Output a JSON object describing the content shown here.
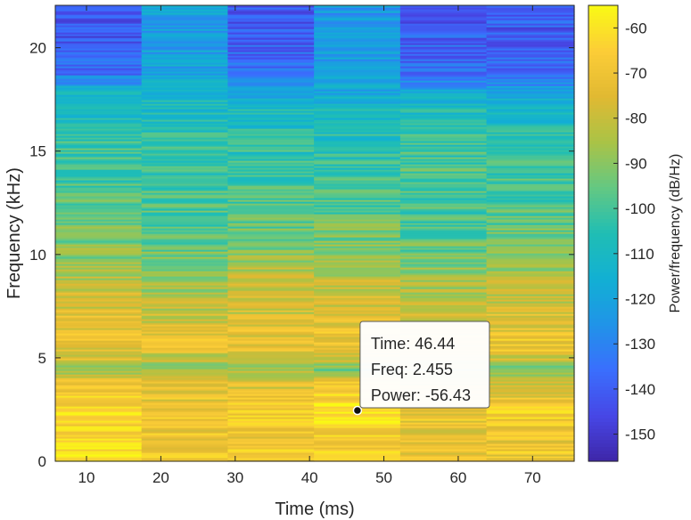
{
  "chart_data": {
    "type": "heatmap",
    "title": "",
    "xlabel": "Time (ms)",
    "ylabel": "Frequency (kHz)",
    "colorbar_label": "Power/frequency (dB/Hz)",
    "colormap": "parula",
    "xlim": [
      5.8,
      75.6
    ],
    "ylim": [
      0,
      22.05
    ],
    "xticks": [
      10,
      20,
      30,
      40,
      50,
      60,
      70
    ],
    "xtick_labels": [
      "10",
      "20",
      "30",
      "40",
      "50",
      "60",
      "70"
    ],
    "yticks": [
      0,
      5,
      10,
      15,
      20
    ],
    "ytick_labels": [
      "0",
      "5",
      "10",
      "15",
      "20"
    ],
    "clim": [
      -156,
      -55
    ],
    "cticks": [
      -60,
      -70,
      -80,
      -90,
      -100,
      -110,
      -120,
      -130,
      -140,
      -150
    ],
    "ctick_labels": [
      "-60",
      "-70",
      "-80",
      "-90",
      "-100",
      "-110",
      "-120",
      "-130",
      "-140",
      "-150"
    ],
    "time_segments": [
      {
        "start": 5.8,
        "end": 17.4,
        "center": 11.6
      },
      {
        "start": 17.4,
        "end": 29.0,
        "center": 23.2
      },
      {
        "start": 29.0,
        "end": 40.6,
        "center": 34.8
      },
      {
        "start": 40.6,
        "end": 52.2,
        "center": 46.44
      },
      {
        "start": 52.2,
        "end": 63.8,
        "center": 58.0
      },
      {
        "start": 63.8,
        "end": 75.6,
        "center": 69.7
      }
    ],
    "spectrum_profile_db": {
      "frequency_khz": [
        0,
        0.5,
        1,
        1.5,
        2,
        2.5,
        3,
        3.5,
        4,
        4.5,
        5,
        5.5,
        6,
        6.5,
        7,
        8,
        9,
        10,
        11,
        12,
        13,
        14,
        15,
        16,
        17,
        18,
        18.5,
        19,
        20,
        21,
        22.05
      ],
      "segments": [
        [
          -62,
          -62,
          -63,
          -65,
          -63,
          -64,
          -67,
          -70,
          -73,
          -90,
          -76,
          -72,
          -70,
          -72,
          -74,
          -80,
          -84,
          -90,
          -92,
          -95,
          -98,
          -100,
          -102,
          -105,
          -108,
          -115,
          -130,
          -138,
          -140,
          -142,
          -142
        ],
        [
          -68,
          -68,
          -69,
          -70,
          -68,
          -70,
          -72,
          -74,
          -79,
          -88,
          -80,
          -74,
          -72,
          -76,
          -80,
          -84,
          -88,
          -93,
          -96,
          -98,
          -100,
          -102,
          -104,
          -106,
          -108,
          -115,
          -118,
          -120,
          -121,
          -121,
          -121
        ],
        [
          -68,
          -68,
          -68,
          -70,
          -66,
          -66,
          -70,
          -74,
          -78,
          -88,
          -80,
          -72,
          -72,
          -75,
          -78,
          -80,
          -83,
          -90,
          -94,
          -97,
          -100,
          -102,
          -104,
          -106,
          -108,
          -120,
          -128,
          -136,
          -138,
          -140,
          -140
        ],
        [
          -66,
          -66,
          -64,
          -64,
          -60,
          -58,
          -62,
          -67,
          -74,
          -95,
          -80,
          -72,
          -70,
          -73,
          -76,
          -78,
          -82,
          -88,
          -93,
          -97,
          -100,
          -103,
          -105,
          -107,
          -110,
          -118,
          -120,
          -122,
          -123,
          -123,
          -123
        ],
        [
          -72,
          -72,
          -72,
          -73,
          -70,
          -70,
          -72,
          -76,
          -80,
          -92,
          -82,
          -74,
          -73,
          -76,
          -80,
          -84,
          -88,
          -94,
          -97,
          -100,
          -100,
          -97,
          -101,
          -104,
          -108,
          -120,
          -130,
          -136,
          -138,
          -140,
          -140
        ],
        [
          -70,
          -70,
          -70,
          -71,
          -68,
          -68,
          -72,
          -76,
          -80,
          -92,
          -80,
          -70,
          -70,
          -73,
          -76,
          -80,
          -84,
          -92,
          -95,
          -97,
          -100,
          -102,
          -104,
          -106,
          -110,
          -124,
          -130,
          -138,
          -140,
          -140,
          -140
        ]
      ]
    },
    "datatip": {
      "time": 46.44,
      "freq": 2.455,
      "power": -56.43,
      "lines": [
        "Time: 46.44",
        "Freq: 2.455",
        "Power: -56.43"
      ]
    }
  }
}
